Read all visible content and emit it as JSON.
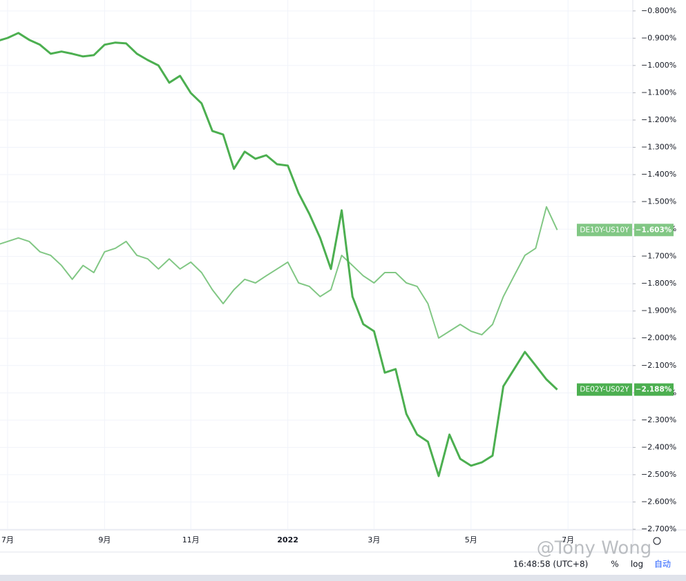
{
  "chart_data": {
    "type": "line",
    "categories": [
      null,
      "7月",
      null,
      null,
      null,
      null,
      null,
      null,
      null,
      null,
      "9月",
      null,
      null,
      null,
      null,
      null,
      null,
      null,
      "11月",
      null,
      null,
      null,
      null,
      null,
      null,
      null,
      null,
      "2022",
      null,
      null,
      null,
      null,
      null,
      null,
      null,
      "3月",
      null,
      null,
      null,
      null,
      null,
      null,
      null,
      null,
      "5月",
      null,
      null,
      null,
      null,
      null,
      null,
      null,
      null,
      "7月"
    ],
    "series": [
      {
        "name": "DE10Y-US10Y",
        "color": "#81c784",
        "values": [
          -1.658,
          -1.645,
          -1.632,
          -1.645,
          -1.683,
          -1.696,
          -1.733,
          -1.784,
          -1.733,
          -1.759,
          -1.683,
          -1.67,
          -1.645,
          -1.696,
          -1.709,
          -1.746,
          -1.709,
          -1.746,
          -1.721,
          -1.759,
          -1.822,
          -1.873,
          -1.822,
          -1.784,
          -1.797,
          -1.771,
          -1.746,
          -1.721,
          -1.797,
          -1.81,
          -1.847,
          -1.822,
          -1.696,
          -1.733,
          -1.771,
          -1.797,
          -1.759,
          -1.759,
          -1.797,
          -1.81,
          -1.873,
          -1.999,
          -1.974,
          -1.949,
          -1.974,
          -1.987,
          -1.949,
          -1.847,
          -1.771,
          -1.696,
          -1.67,
          -1.518,
          -1.603,
          null
        ],
        "value_labels": [
          null,
          null,
          null,
          null,
          null,
          null,
          null,
          null,
          null,
          null,
          null,
          null,
          null,
          null,
          null,
          null,
          null,
          null,
          null,
          null,
          null,
          null,
          null,
          null,
          null,
          null,
          null,
          null,
          null,
          null,
          null,
          null,
          null,
          null,
          null,
          null,
          null,
          null,
          null,
          null,
          null,
          null,
          null,
          null,
          null,
          null,
          null,
          null,
          null,
          null,
          null,
          null,
          "−1.603%",
          null
        ]
      },
      {
        "name": "DE02Y-US02Y",
        "color": "#4caf50",
        "values": [
          -0.911,
          -0.899,
          -0.881,
          -0.906,
          -0.924,
          -0.957,
          -0.949,
          -0.957,
          -0.967,
          -0.962,
          -0.924,
          -0.916,
          -0.919,
          -0.957,
          -0.98,
          -1.0,
          -1.063,
          -1.038,
          -1.101,
          -1.139,
          -1.24,
          -1.253,
          -1.379,
          -1.316,
          -1.342,
          -1.329,
          -1.362,
          -1.367,
          -1.468,
          -1.544,
          -1.632,
          -1.746,
          -1.531,
          -1.847,
          -1.948,
          -1.974,
          -2.126,
          -2.113,
          -2.277,
          -2.353,
          -2.379,
          -2.505,
          -2.353,
          -2.442,
          -2.467,
          -2.455,
          -2.43,
          -2.176,
          -2.113,
          -2.05,
          -2.1,
          -2.151,
          -2.188,
          null
        ],
        "value_labels": [
          null,
          null,
          null,
          null,
          null,
          null,
          null,
          null,
          null,
          null,
          null,
          null,
          null,
          null,
          null,
          null,
          null,
          null,
          null,
          null,
          null,
          null,
          null,
          null,
          null,
          null,
          null,
          null,
          null,
          null,
          null,
          null,
          null,
          null,
          null,
          null,
          null,
          null,
          null,
          null,
          null,
          null,
          null,
          null,
          null,
          null,
          null,
          null,
          null,
          null,
          null,
          null,
          "−2.188%",
          null
        ]
      }
    ],
    "ylim": [
      -2.7,
      -0.76
    ],
    "yticks": [
      {
        "value": -0.8,
        "label": "−0.800%"
      },
      {
        "value": -0.9,
        "label": "−0.900%"
      },
      {
        "value": -1.0,
        "label": "−1.000%"
      },
      {
        "value": -1.1,
        "label": "−1.100%"
      },
      {
        "value": -1.2,
        "label": "−1.200%"
      },
      {
        "value": -1.3,
        "label": "−1.300%"
      },
      {
        "value": -1.4,
        "label": "−1.400%"
      },
      {
        "value": -1.5,
        "label": "−1.500%"
      },
      {
        "value": -1.6,
        "label": "−1.600%"
      },
      {
        "value": -1.7,
        "label": "−1.700%"
      },
      {
        "value": -1.8,
        "label": "−1.800%"
      },
      {
        "value": -1.9,
        "label": "−1.900%"
      },
      {
        "value": -2.0,
        "label": "−2.000%"
      },
      {
        "value": -2.1,
        "label": "−2.100%"
      },
      {
        "value": -2.2,
        "label": "−2.200%"
      },
      {
        "value": -2.3,
        "label": "−2.300%"
      },
      {
        "value": -2.4,
        "label": "−2.400%"
      },
      {
        "value": -2.5,
        "label": "−2.500%"
      },
      {
        "value": -2.6,
        "label": "−2.600%"
      },
      {
        "value": -2.7,
        "label": "−2.700%"
      }
    ],
    "grid": true,
    "watermark": "@Tony Wong",
    "toolbar": {
      "time": "16:48:58 (UTC+8)",
      "percent": "%",
      "log": "log",
      "auto": "自动"
    }
  }
}
